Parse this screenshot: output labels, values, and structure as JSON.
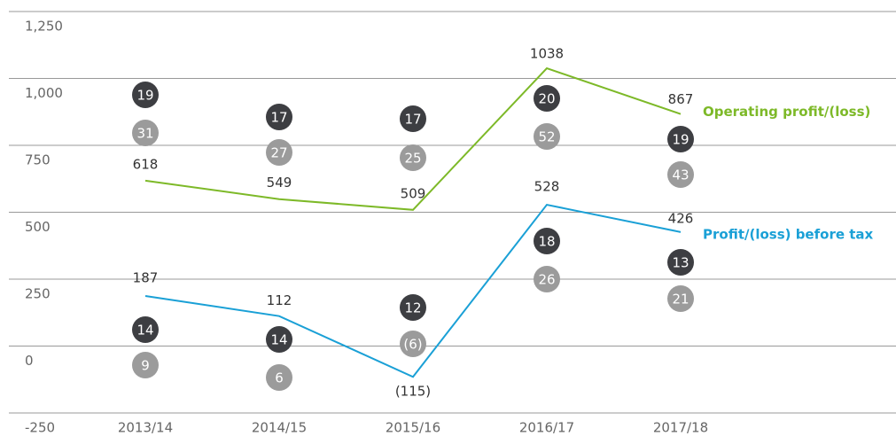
{
  "chart_data": {
    "type": "line",
    "categories": [
      "2013/14",
      "2014/15",
      "2015/16",
      "2016/17",
      "2017/18"
    ],
    "series": [
      {
        "name": "Operating profit/(loss)",
        "color": "#7db928",
        "values": [
          618,
          549,
          509,
          1038,
          867
        ]
      },
      {
        "name": "Profit/(loss) before tax",
        "color": "#1aa0d6",
        "values": [
          187,
          112,
          -115,
          528,
          426
        ],
        "value_labels": [
          "187",
          "112",
          "(115)",
          "528",
          "426"
        ]
      }
    ],
    "badges": [
      {
        "color": "#3d3e42",
        "values": [
          19,
          17,
          17,
          20,
          19
        ]
      },
      {
        "color": "#9b9b9b",
        "values": [
          31,
          27,
          25,
          52,
          43
        ]
      },
      {
        "color": "#3d3e42",
        "values": [
          14,
          14,
          12,
          18,
          13
        ]
      },
      {
        "color": "#9b9b9b",
        "values": [
          9,
          6,
          -6,
          26,
          21
        ],
        "value_labels": [
          "9",
          "6",
          "(6)",
          "26",
          "21"
        ]
      }
    ],
    "ylim": [
      -250,
      1250
    ],
    "yticks": [
      -250,
      0,
      250,
      500,
      {
        "value": 750,
        "label": "750"
      },
      {
        "value": 1000,
        "label": "1,000"
      },
      {
        "value": 1250,
        "label": "1,250"
      }
    ],
    "grid": true
  }
}
